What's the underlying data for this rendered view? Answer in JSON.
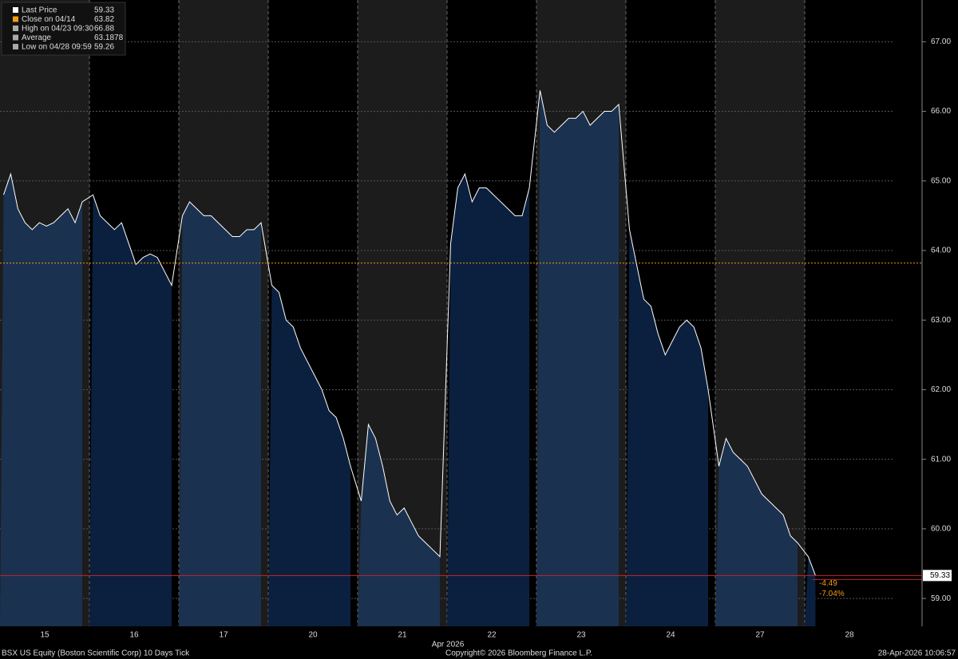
{
  "chart_data": {
    "type": "line",
    "categories": [
      "15",
      "16",
      "17",
      "20",
      "21",
      "22",
      "23",
      "24",
      "27",
      "28"
    ],
    "month_label": "Apr 2026",
    "series": [
      {
        "name": "Last Price",
        "color": "#ffffff",
        "values": [
          [
            64.8,
            65.1,
            64.6,
            64.4,
            64.3,
            64.4,
            64.35,
            64.4,
            64.5,
            64.6,
            64.4,
            64.7
          ],
          [
            64.8,
            64.5,
            64.4,
            64.3,
            64.4,
            64.1,
            63.8,
            63.9,
            63.95,
            63.9,
            63.7,
            63.5
          ],
          [
            64.5,
            64.7,
            64.6,
            64.5,
            64.5,
            64.4,
            64.3,
            64.2,
            64.2,
            64.3,
            64.3,
            64.4
          ],
          [
            63.5,
            63.4,
            63.0,
            62.9,
            62.6,
            62.4,
            62.2,
            62.0,
            61.7,
            61.6,
            61.3,
            60.9
          ],
          [
            60.4,
            61.5,
            61.3,
            60.9,
            60.4,
            60.2,
            60.3,
            60.1,
            59.9,
            59.8,
            59.7,
            59.6
          ],
          [
            64.1,
            64.9,
            65.1,
            64.7,
            64.9,
            64.9,
            64.8,
            64.7,
            64.6,
            64.5,
            64.5,
            64.9
          ],
          [
            66.3,
            65.8,
            65.7,
            65.8,
            65.9,
            65.9,
            66.0,
            65.8,
            65.9,
            66.0,
            66.0,
            66.1
          ],
          [
            64.3,
            63.8,
            63.3,
            63.2,
            62.8,
            62.5,
            62.7,
            62.9,
            63.0,
            62.9,
            62.6,
            62.0
          ],
          [
            60.9,
            61.3,
            61.1,
            61.0,
            60.9,
            60.7,
            60.5,
            60.4,
            60.3,
            60.2,
            59.9,
            59.8
          ],
          [
            59.6,
            59.33
          ]
        ]
      }
    ],
    "ylim": [
      58.6,
      67.6
    ],
    "yticks": [
      {
        "value": 59,
        "label": "59.00"
      },
      {
        "value": 60,
        "label": "60.00"
      },
      {
        "value": 61,
        "label": "61.00"
      },
      {
        "value": 62,
        "label": "62.00"
      },
      {
        "value": 63,
        "label": "63.00"
      },
      {
        "value": 64,
        "label": "64.00"
      },
      {
        "value": 65,
        "label": "65.00"
      },
      {
        "value": 66,
        "label": "66.00"
      },
      {
        "value": 67,
        "label": "67.00"
      }
    ],
    "grid": true,
    "legend": [
      {
        "name": "Last Price",
        "value": 59.33,
        "color": "#ffffff"
      },
      {
        "name": "Close on 04/14",
        "value": 63.82,
        "color": "#f39c12"
      },
      {
        "name": "High on 04/23 09:30",
        "value": 66.88,
        "color": "#aaaaaa"
      },
      {
        "name": "Average",
        "value": 63.1878,
        "color": "#aaaaaa"
      },
      {
        "name": "Low on 04/28 09:59",
        "value": 59.26,
        "color": "#aaaaaa"
      }
    ],
    "last_price": 59.33,
    "close_line": 63.82,
    "change": -4.49,
    "change_pct": {
      "value": -7.04,
      "label": "-7.04%"
    },
    "footer_left": "BSX US Equity (Boston Scientific Corp) 10 Days Tick",
    "footer_center": "Copyright© 2026 Bloomberg Finance L.P.",
    "footer_right": "28-Apr-2026 10:06:57"
  }
}
